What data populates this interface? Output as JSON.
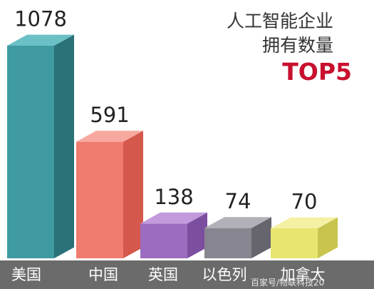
{
  "title_lines": [
    "人工智能企业",
    "拥有数量"
  ],
  "title_badge": "TOP5",
  "watermark": "百家号/物联科技20",
  "colors": {
    "band": "#6b6b6b",
    "title_badge": "#c8102e"
  },
  "chart_data": {
    "type": "bar",
    "categories": [
      "美国",
      "中国",
      "英国",
      "以色列",
      "加拿大"
    ],
    "values": [
      1078,
      591,
      138,
      74,
      70
    ],
    "value_labels": [
      "1078",
      "591",
      "138",
      "74",
      "70"
    ],
    "ylim": [
      0,
      1078
    ],
    "grid": false,
    "legend": "none",
    "bar_colors": [
      {
        "front": "#3f9aa1",
        "side": "#2a7178",
        "top": "#6bc0c5"
      },
      {
        "front": "#f07c6f",
        "side": "#d4584b",
        "top": "#f7a9a0"
      },
      {
        "front": "#9c6cc0",
        "side": "#7c4ea0",
        "top": "#c39bdd"
      },
      {
        "front": "#87858f",
        "side": "#66646d",
        "top": "#b2b0b9"
      },
      {
        "front": "#e8e571",
        "side": "#c8c44d",
        "top": "#f4f1a4"
      }
    ]
  }
}
